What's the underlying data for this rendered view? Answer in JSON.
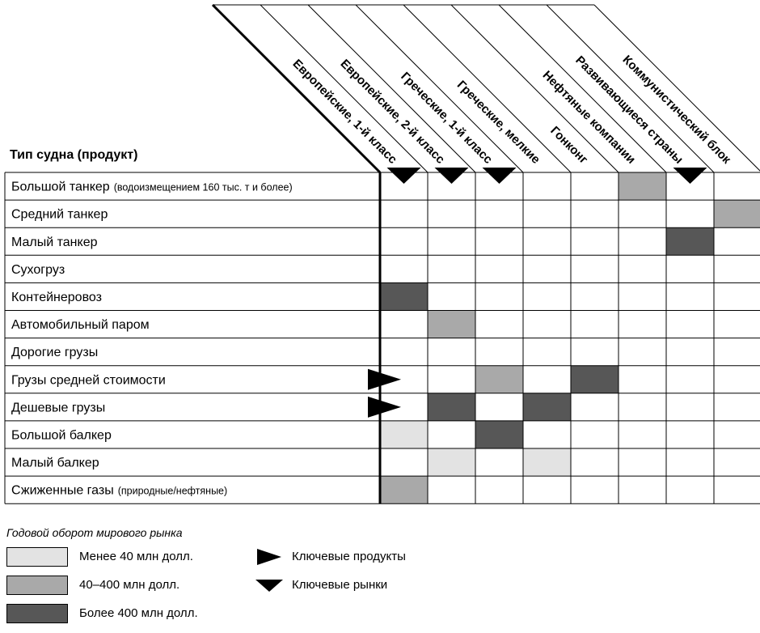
{
  "header_label": "Тип судна (продукт)",
  "columns": [
    "Европейские, 1-й класс",
    "Европейские, 2-й класс",
    "Греческие, 1-й класс",
    "Греческие, мелкие",
    "Гонконг",
    "Нефтяные компании",
    "Развивающиеся страны",
    "Коммунистический блок"
  ],
  "rows": [
    {
      "label": "Большой танкер",
      "note": "(водоизмещением 160 тыс. т и более)"
    },
    {
      "label": "Средний танкер",
      "note": ""
    },
    {
      "label": "Малый танкер",
      "note": ""
    },
    {
      "label": "Сухогруз",
      "note": ""
    },
    {
      "label": "Контейнеровоз",
      "note": ""
    },
    {
      "label": "Автомобильный паром",
      "note": ""
    },
    {
      "label": "Дорогие грузы",
      "note": ""
    },
    {
      "label": "Грузы средней стоимости",
      "note": ""
    },
    {
      "label": "Дешевые грузы",
      "note": ""
    },
    {
      "label": "Большой балкер",
      "note": ""
    },
    {
      "label": "Малый балкер",
      "note": ""
    },
    {
      "label": "Сжиженные газы",
      "note": "(природные/нефтяные)"
    }
  ],
  "cells": [
    {
      "row": 0,
      "col": 5,
      "level": "mid"
    },
    {
      "row": 1,
      "col": 7,
      "level": "mid"
    },
    {
      "row": 2,
      "col": 6,
      "level": "high"
    },
    {
      "row": 4,
      "col": 0,
      "level": "high"
    },
    {
      "row": 5,
      "col": 1,
      "level": "mid"
    },
    {
      "row": 7,
      "col": 2,
      "level": "mid"
    },
    {
      "row": 7,
      "col": 4,
      "level": "high"
    },
    {
      "row": 8,
      "col": 1,
      "level": "high"
    },
    {
      "row": 8,
      "col": 3,
      "level": "high"
    },
    {
      "row": 9,
      "col": 0,
      "level": "low"
    },
    {
      "row": 9,
      "col": 2,
      "level": "high"
    },
    {
      "row": 10,
      "col": 1,
      "level": "low"
    },
    {
      "row": 10,
      "col": 3,
      "level": "low"
    },
    {
      "row": 11,
      "col": 0,
      "level": "mid"
    }
  ],
  "key_market_cols": [
    0,
    1,
    2,
    6
  ],
  "key_product_rows": [
    7,
    8
  ],
  "colors": {
    "low": "#e3e3e3",
    "mid": "#a9a9a9",
    "high": "#575757",
    "grid": "#000000"
  },
  "legend": {
    "title": "Годовой оборот мирового рынка",
    "levels": [
      {
        "level": "low",
        "label": "Менее 40 млн долл."
      },
      {
        "level": "mid",
        "label": "40–400 млн долл."
      },
      {
        "level": "high",
        "label": "Более 400 млн долл."
      }
    ],
    "markers": [
      {
        "type": "key-product",
        "label": "Ключевые продукты"
      },
      {
        "type": "key-market",
        "label": "Ключевые рынки"
      }
    ]
  }
}
